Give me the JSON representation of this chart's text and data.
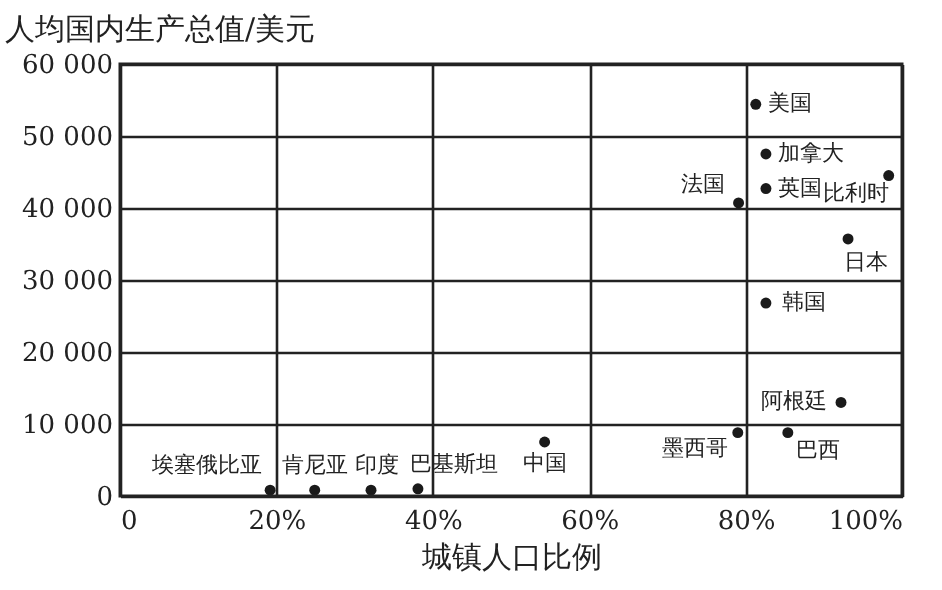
{
  "chart_data": {
    "type": "scatter",
    "xlabel": "城镇人口比例",
    "ylabel": "人均国内生产总值/美元",
    "x": [
      81.3,
      82.6,
      82.6,
      79.1,
      98.3,
      93.1,
      82.6,
      92.2,
      79.0,
      85.4,
      54.3,
      19.2,
      24.9,
      32.1,
      38.1
    ],
    "series": [
      {
        "color": "#1a1a1a",
        "values": [
          54400,
          47500,
          42700,
          40700,
          44500,
          35700,
          26800,
          13000,
          8800,
          8800,
          7500,
          800,
          800,
          800,
          1000
        ]
      }
    ],
    "annotations": [
      {
        "text": "美国",
        "x": 81.3,
        "y": 54400
      },
      {
        "text": "加拿大",
        "x": 82.6,
        "y": 47500
      },
      {
        "text": "英国",
        "x": 82.6,
        "y": 42700
      },
      {
        "text": "法国",
        "x": 79.1,
        "y": 40700
      },
      {
        "text": "比利时",
        "x": 98.3,
        "y": 44500
      },
      {
        "text": "日本",
        "x": 93.1,
        "y": 35700
      },
      {
        "text": "韩国",
        "x": 82.6,
        "y": 26800
      },
      {
        "text": "阿根廷",
        "x": 92.2,
        "y": 13000
      },
      {
        "text": "墨西哥",
        "x": 79.0,
        "y": 8800
      },
      {
        "text": "巴西",
        "x": 85.4,
        "y": 8800
      },
      {
        "text": "中国",
        "x": 54.3,
        "y": 7500
      },
      {
        "text": "埃塞俄比亚",
        "x": 19.2,
        "y": 800
      },
      {
        "text": "肯尼亚",
        "x": 24.9,
        "y": 800
      },
      {
        "text": "印度",
        "x": 32.1,
        "y": 800
      },
      {
        "text": "巴基斯坦",
        "x": 38.1,
        "y": 1000
      }
    ],
    "xlim": [
      0,
      100
    ],
    "xticks": [
      0,
      {
        "value": 20,
        "label": "20%"
      },
      {
        "value": 40,
        "label": "40%"
      },
      {
        "value": 60,
        "label": "60%"
      },
      {
        "value": 80,
        "label": "80%"
      },
      {
        "value": 100,
        "label": "100%"
      }
    ],
    "ylim": [
      0,
      60000
    ],
    "yticks": [
      0,
      {
        "value": 10000,
        "label": "10 000"
      },
      {
        "value": 20000,
        "label": "20 000"
      },
      {
        "value": 30000,
        "label": "30 000"
      },
      {
        "value": 40000,
        "label": "40 000"
      },
      {
        "value": 50000,
        "label": "50 000"
      },
      {
        "value": 60000,
        "label": "60 000"
      }
    ],
    "grid": true,
    "marker": "circle"
  }
}
